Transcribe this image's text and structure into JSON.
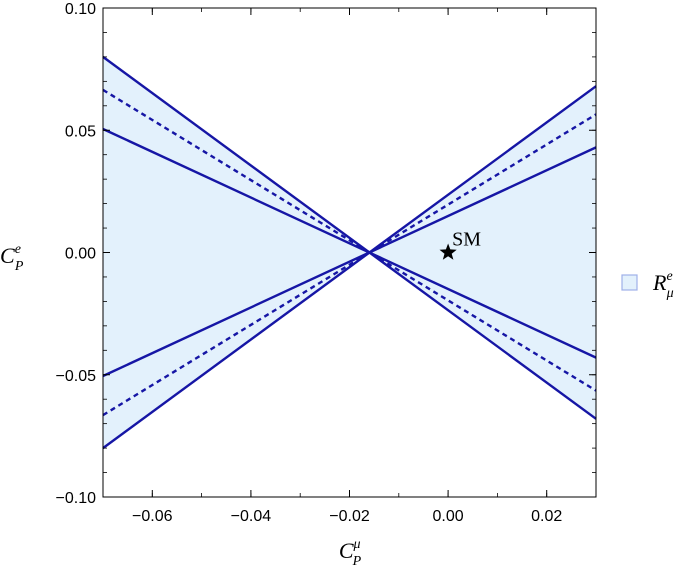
{
  "chart_data": {
    "type": "line",
    "title": "",
    "xlabel": {
      "base": "C",
      "sup": "μ",
      "sub": "P"
    },
    "ylabel": {
      "base": "C",
      "sup": "e",
      "sub": "P"
    },
    "xlim": [
      -0.07,
      0.03
    ],
    "ylim": [
      -0.1,
      0.1
    ],
    "xticks": [
      -0.06,
      -0.04,
      -0.02,
      0.0,
      0.02
    ],
    "xtick_labels": [
      "−0.06",
      "−0.04",
      "−0.02",
      "0.00",
      "0.02"
    ],
    "yticks": [
      -0.1,
      -0.05,
      0.0,
      0.05,
      0.1
    ],
    "ytick_labels": [
      "−0.10",
      "−0.05",
      "0.00",
      "0.05",
      "0.10"
    ],
    "grid": false,
    "fill_color": "#e3f1fc",
    "line_color": "#1616a5",
    "x": [
      -0.07,
      0.03
    ],
    "series": [
      {
        "values": [
          0.08,
          -0.068
        ],
        "style": "solid"
      },
      {
        "values": [
          0.0665,
          -0.0565
        ],
        "style": "dashed"
      },
      {
        "values": [
          0.0505,
          -0.043
        ],
        "style": "solid"
      },
      {
        "values": [
          -0.0505,
          0.043
        ],
        "style": "solid"
      },
      {
        "values": [
          -0.0665,
          0.0565
        ],
        "style": "dashed"
      },
      {
        "values": [
          -0.08,
          0.068
        ],
        "style": "solid"
      }
    ],
    "shaded_region": {
      "polygon": [
        [
          -0.07,
          0.08
        ],
        [
          -0.016,
          0.0
        ],
        [
          0.03,
          0.068
        ],
        [
          0.03,
          -0.068
        ],
        [
          -0.016,
          0.0
        ],
        [
          -0.07,
          -0.08
        ]
      ]
    },
    "points": [
      {
        "x": 0.0,
        "y": 0.0,
        "marker": "star",
        "label": "SM"
      }
    ],
    "legend": {
      "position": "right",
      "entries": [
        {
          "base": "R",
          "sup": "e",
          "sub": "μ"
        }
      ]
    }
  }
}
